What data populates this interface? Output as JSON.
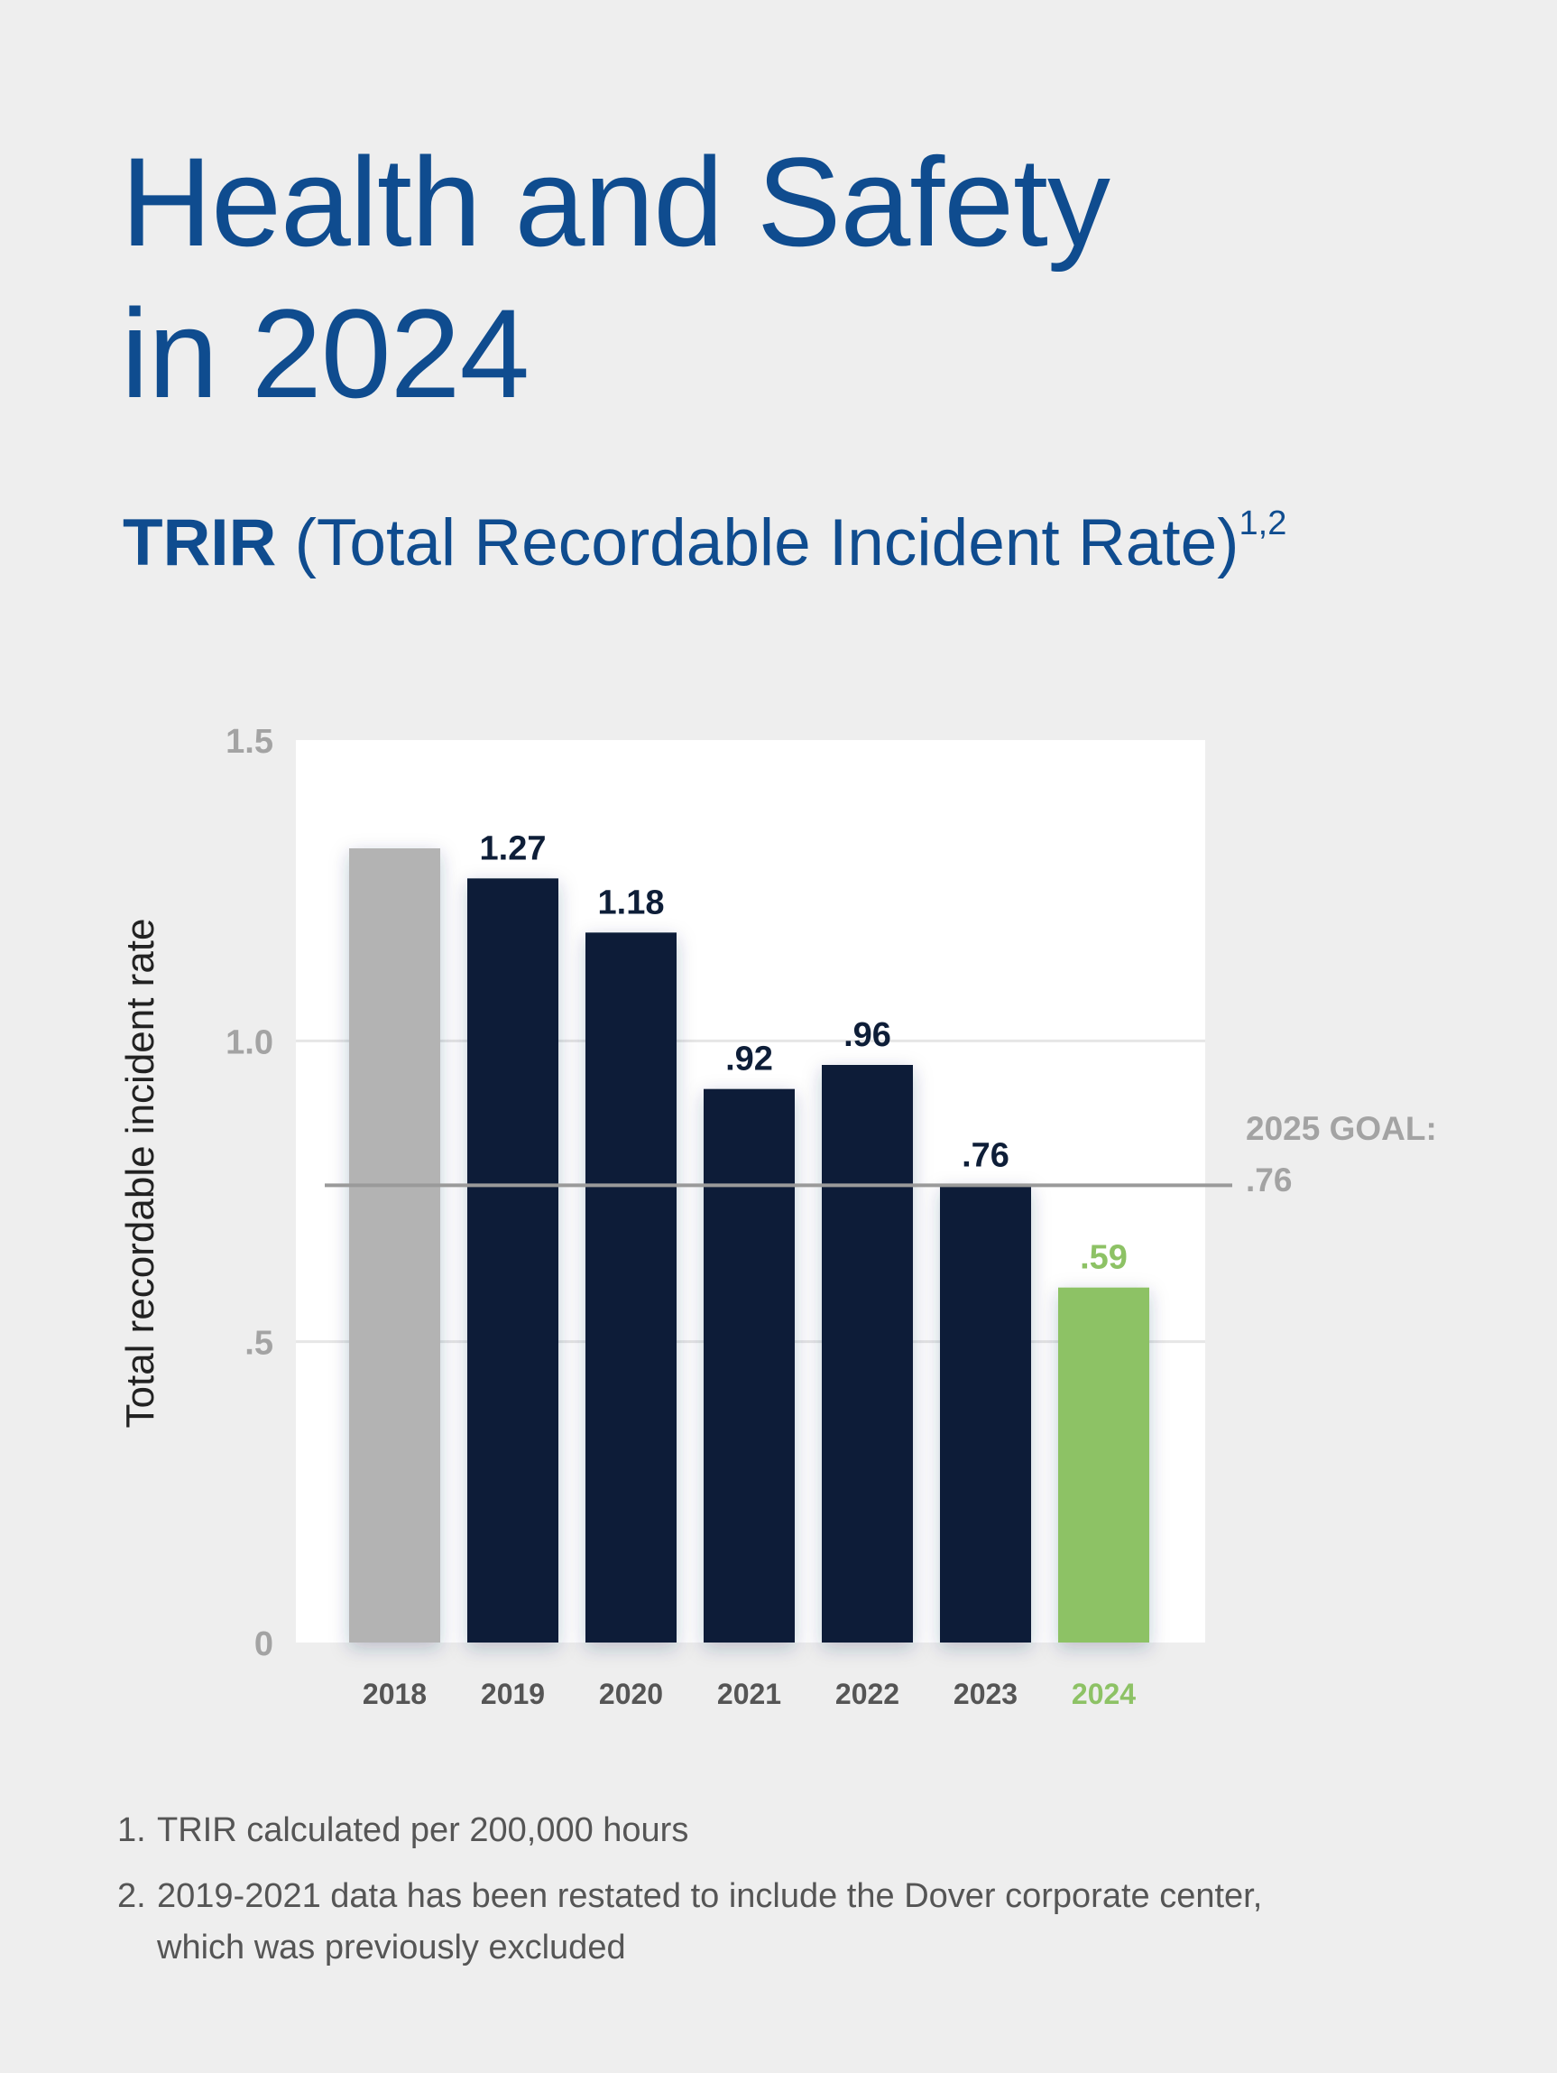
{
  "header": {
    "title_line1": "Health and Safety",
    "title_line2": "in 2024",
    "subtitle_abbr": "TRIR",
    "subtitle_full": "(Total Recordable Incident Rate)",
    "subtitle_sup": "1,2"
  },
  "chart_data": {
    "type": "bar",
    "categories": [
      "2018",
      "2019",
      "2020",
      "2021",
      "2022",
      "2023",
      "2024"
    ],
    "values": [
      1.32,
      1.27,
      1.18,
      0.92,
      0.96,
      0.76,
      0.59
    ],
    "data_labels": [
      "",
      "1.27",
      "1.18",
      ".92",
      ".96",
      ".76",
      ".59"
    ],
    "ylabel": "Total recordable incident rate",
    "ylim": [
      0,
      1.5
    ],
    "yticks": [
      0,
      0.5,
      1.0,
      1.5
    ],
    "ytick_labels": [
      "0",
      ".5",
      "1.0",
      "1.5"
    ],
    "grid": true,
    "reference_line": {
      "value": 0.76,
      "label_line1": "2025 GOAL:",
      "label_line2": ".76"
    },
    "colors": {
      "default": "#0e1e38",
      "first": "#b3b3b3",
      "last": "#8dc265",
      "goal_line": "#9a9a9a",
      "plot_bg": "#ffffff",
      "grid": "#e6e6e6",
      "tick_text": "#a3a3a3",
      "year_text": "#555555"
    }
  },
  "footnotes": [
    {
      "num": "1.",
      "text": "TRIR calculated per 200,000 hours"
    },
    {
      "num": "2.",
      "text": "2019-2021 data has been restated to include the Dover corporate center, which was previously excluded"
    }
  ]
}
